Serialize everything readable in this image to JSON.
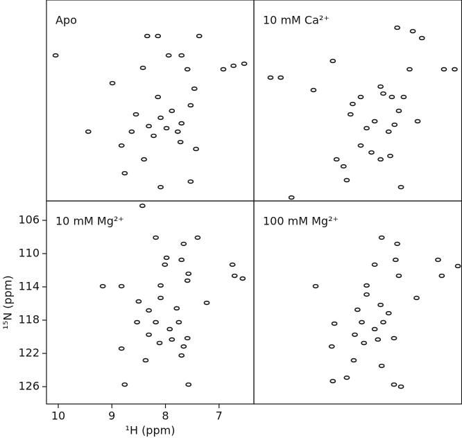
{
  "chart_data": [
    {
      "type": "scatter",
      "title": "Apo",
      "color": "#1a1a1a",
      "xlim": [
        10.22,
        6.35
      ],
      "ylim": [
        103.67,
        127.83
      ],
      "x": [
        10.05,
        9.44,
        8.99,
        8.82,
        8.76,
        8.55,
        8.34,
        8.14,
        7.94,
        7.7,
        7.37,
        7.59,
        7.46,
        7.53,
        8.42,
        8.14,
        8.31,
        8.22,
        8.09,
        7.98,
        7.88,
        7.77,
        7.7,
        7.72,
        7.43,
        8.09,
        7.53,
        8.4,
        6.92,
        6.53,
        6.73,
        8.63
      ],
      "y": [
        110.33,
        119.5,
        113.67,
        121.17,
        124.5,
        117.42,
        108.0,
        108.0,
        110.33,
        110.33,
        108.0,
        112.0,
        114.33,
        116.33,
        111.83,
        115.33,
        118.83,
        120.0,
        117.83,
        119.08,
        117.0,
        119.5,
        118.5,
        120.75,
        121.58,
        126.17,
        125.5,
        122.83,
        112.0,
        111.33,
        111.58,
        119.5
      ]
    },
    {
      "type": "scatter",
      "title": "10 mM Ca²⁺",
      "color": "#1a1a1a",
      "xlim": [
        10.22,
        6.35
      ],
      "ylim": [
        103.67,
        127.83
      ],
      "x": [
        9.91,
        9.72,
        9.52,
        9.11,
        8.75,
        8.38,
        8.42,
        8.23,
        8.12,
        7.97,
        7.86,
        7.81,
        7.71,
        7.6,
        7.52,
        7.55,
        7.43,
        7.32,
        7.17,
        7.09,
        6.68,
        6.48,
        8.23,
        8.03,
        7.86,
        7.68,
        8.55,
        8.68,
        8.49,
        7.48,
        7.65,
        7.26
      ],
      "y": [
        113.0,
        113.0,
        127.42,
        114.5,
        111.0,
        116.17,
        117.42,
        115.33,
        119.08,
        118.25,
        114.08,
        114.92,
        119.5,
        118.67,
        117.0,
        107.0,
        115.33,
        112.0,
        118.25,
        108.25,
        112.0,
        112.0,
        121.17,
        122.0,
        122.83,
        122.42,
        123.67,
        122.83,
        125.33,
        126.17,
        115.33,
        107.42
      ]
    },
    {
      "type": "scatter",
      "title": "10 mM Mg²⁺",
      "color": "#1a1a1a",
      "xlim": [
        10.22,
        6.35
      ],
      "ylim": [
        103.67,
        128.08
      ],
      "xlabel": "¹H (ppm)",
      "ylabel": "¹⁵N (ppm)",
      "xticks": [
        10,
        9,
        8,
        7
      ],
      "yticks": [
        106,
        110,
        114,
        118,
        122,
        126
      ],
      "x": [
        8.82,
        8.43,
        8.18,
        7.66,
        7.4,
        7.98,
        8.01,
        7.7,
        7.57,
        7.59,
        6.75,
        6.71,
        6.56,
        8.09,
        8.09,
        8.31,
        7.79,
        7.23,
        8.53,
        8.18,
        7.92,
        7.75,
        8.31,
        8.11,
        7.88,
        7.59,
        7.66,
        8.82,
        8.37,
        7.7,
        8.76,
        7.57,
        9.17,
        8.5
      ],
      "y": [
        113.92,
        104.25,
        108.08,
        108.83,
        108.08,
        110.5,
        111.33,
        110.75,
        112.42,
        113.25,
        111.33,
        112.67,
        113.0,
        113.83,
        115.33,
        116.83,
        116.58,
        115.92,
        118.25,
        118.25,
        119.08,
        118.25,
        119.75,
        120.75,
        120.33,
        120.17,
        121.17,
        121.42,
        122.83,
        122.25,
        125.75,
        125.75,
        113.92,
        115.75
      ]
    },
    {
      "type": "scatter",
      "title": "100 mM Mg²⁺",
      "color": "#1a1a1a",
      "xlim": [
        10.22,
        6.35
      ],
      "ylim": [
        103.67,
        128.08
      ],
      "x": [
        9.07,
        7.84,
        7.55,
        7.97,
        7.58,
        7.52,
        6.79,
        6.72,
        6.42,
        8.12,
        8.12,
        7.19,
        8.29,
        7.86,
        8.72,
        8.21,
        7.97,
        7.81,
        8.34,
        8.17,
        7.91,
        7.61,
        8.77,
        7.84,
        8.36,
        7.61,
        7.48,
        8.75,
        8.49,
        7.71
      ],
      "y": [
        113.92,
        108.08,
        108.83,
        111.33,
        110.75,
        112.67,
        110.75,
        112.67,
        111.5,
        113.83,
        114.92,
        115.33,
        116.75,
        116.17,
        118.42,
        118.25,
        119.08,
        118.25,
        119.75,
        120.75,
        120.33,
        120.17,
        121.17,
        123.5,
        122.83,
        125.75,
        126.0,
        125.33,
        124.92,
        117.17
      ]
    }
  ]
}
